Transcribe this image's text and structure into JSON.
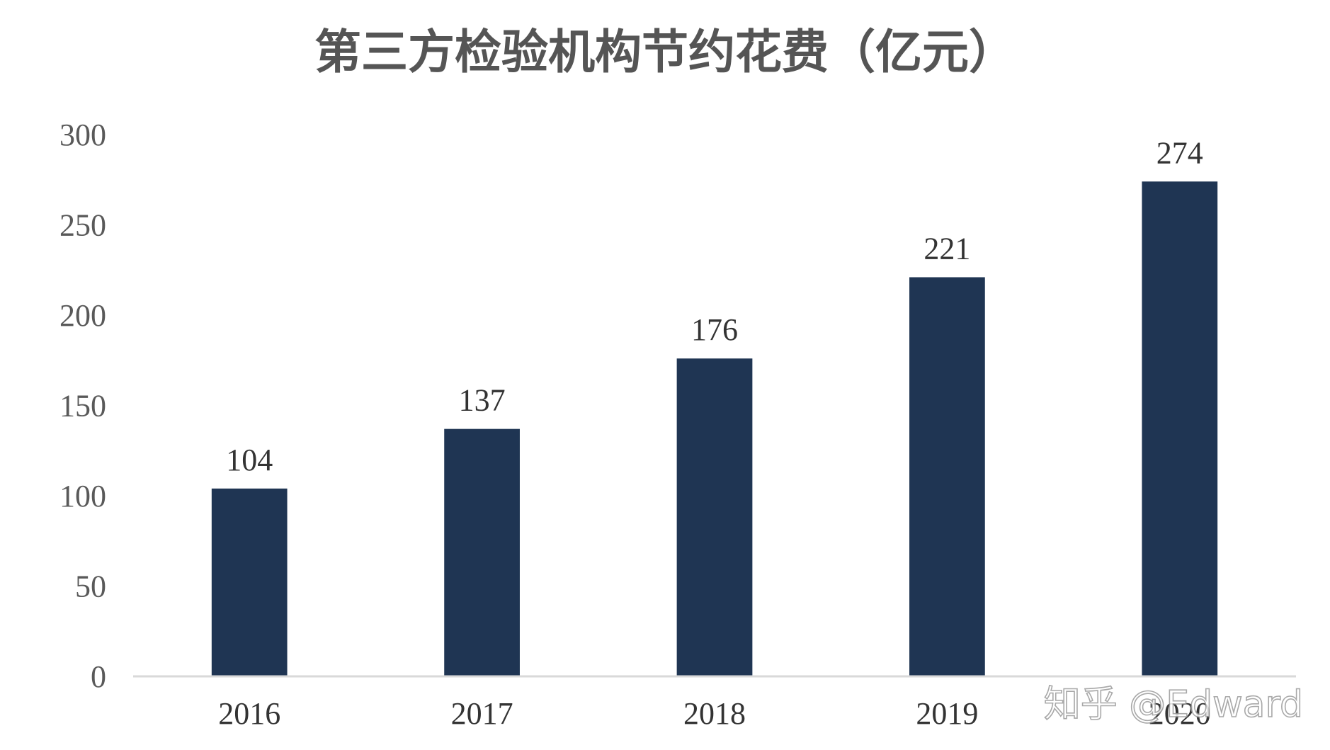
{
  "chart_data": {
    "type": "bar",
    "title": "第三方检验机构节约花费（亿元）",
    "categories": [
      "2016",
      "2017",
      "2018",
      "2019",
      "2020"
    ],
    "values": [
      104,
      137,
      176,
      221,
      274
    ],
    "data_labels": [
      "104",
      "137",
      "176",
      "221",
      "274"
    ],
    "yticks": [
      "0",
      "50",
      "100",
      "150",
      "200",
      "250",
      "300"
    ],
    "ylim": [
      0,
      300
    ],
    "grid": false,
    "legend": "none",
    "bar_color": "#1f3553"
  },
  "watermark": "知乎 @Edward"
}
